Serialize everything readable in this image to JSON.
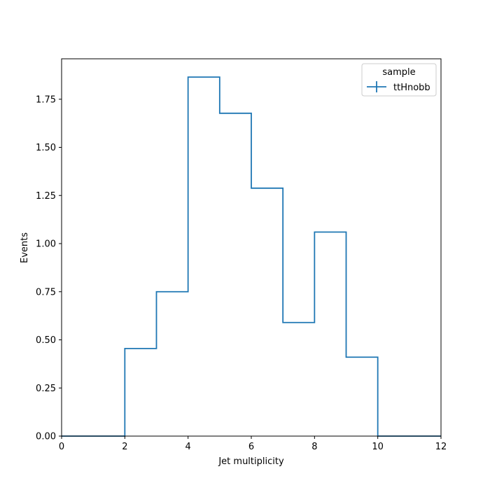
{
  "chart_data": {
    "type": "step",
    "xlabel": "Jet multiplicity",
    "ylabel": "Events",
    "xlim": [
      0,
      12
    ],
    "ylim": [
      0,
      1.96
    ],
    "xticks": [
      "0",
      "2",
      "4",
      "6",
      "8",
      "10",
      "12"
    ],
    "yticks": [
      "0.00",
      "0.25",
      "0.50",
      "0.75",
      "1.00",
      "1.25",
      "1.50",
      "1.75"
    ],
    "bin_edges": [
      0,
      1,
      2,
      3,
      4,
      5,
      6,
      7,
      8,
      9,
      10,
      11,
      12
    ],
    "series": [
      {
        "name": "ttHnobb",
        "color": "#1f77b4",
        "values": [
          0,
          0,
          0.455,
          0.75,
          1.865,
          1.677,
          1.288,
          0.59,
          1.06,
          0.41,
          0,
          0
        ]
      }
    ],
    "legend": {
      "title": "sample",
      "placement": "top-right"
    },
    "grid": false
  }
}
